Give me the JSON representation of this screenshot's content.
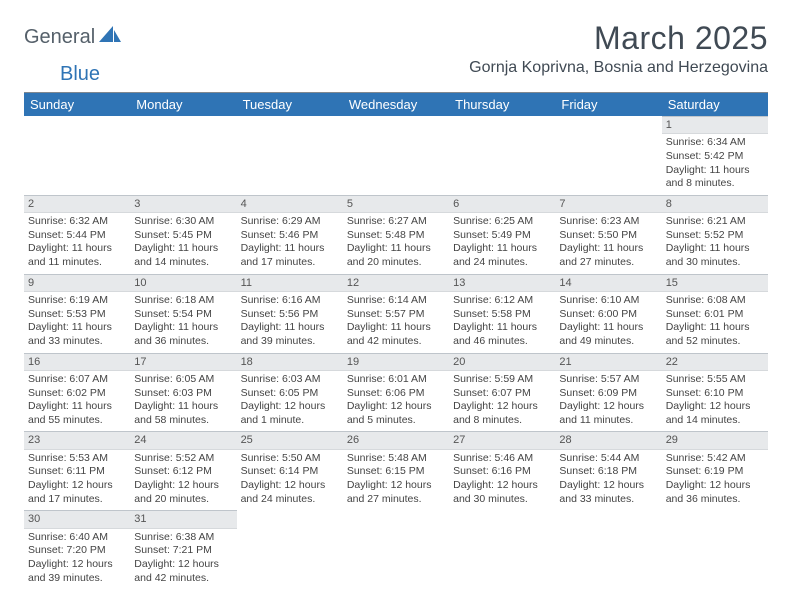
{
  "logo": {
    "general": "General",
    "blue": "Blue"
  },
  "title": "March 2025",
  "location": "Gornja Koprivna, Bosnia and Herzegovina",
  "colors": {
    "header_bg": "#2f74b5",
    "header_text": "#ffffff",
    "daynum_bg": "#e7e9eb",
    "grid_border": "#bfc5cb",
    "text": "#444444",
    "title_text": "#404a54",
    "logo_gray": "#55606a",
    "logo_blue": "#2f74b5"
  },
  "weekdays": [
    "Sunday",
    "Monday",
    "Tuesday",
    "Wednesday",
    "Thursday",
    "Friday",
    "Saturday"
  ],
  "weeks": [
    [
      null,
      null,
      null,
      null,
      null,
      null,
      {
        "n": "1",
        "sunrise": "Sunrise: 6:34 AM",
        "sunset": "Sunset: 5:42 PM",
        "daylight": "Daylight: 11 hours and 8 minutes."
      }
    ],
    [
      {
        "n": "2",
        "sunrise": "Sunrise: 6:32 AM",
        "sunset": "Sunset: 5:44 PM",
        "daylight": "Daylight: 11 hours and 11 minutes."
      },
      {
        "n": "3",
        "sunrise": "Sunrise: 6:30 AM",
        "sunset": "Sunset: 5:45 PM",
        "daylight": "Daylight: 11 hours and 14 minutes."
      },
      {
        "n": "4",
        "sunrise": "Sunrise: 6:29 AM",
        "sunset": "Sunset: 5:46 PM",
        "daylight": "Daylight: 11 hours and 17 minutes."
      },
      {
        "n": "5",
        "sunrise": "Sunrise: 6:27 AM",
        "sunset": "Sunset: 5:48 PM",
        "daylight": "Daylight: 11 hours and 20 minutes."
      },
      {
        "n": "6",
        "sunrise": "Sunrise: 6:25 AM",
        "sunset": "Sunset: 5:49 PM",
        "daylight": "Daylight: 11 hours and 24 minutes."
      },
      {
        "n": "7",
        "sunrise": "Sunrise: 6:23 AM",
        "sunset": "Sunset: 5:50 PM",
        "daylight": "Daylight: 11 hours and 27 minutes."
      },
      {
        "n": "8",
        "sunrise": "Sunrise: 6:21 AM",
        "sunset": "Sunset: 5:52 PM",
        "daylight": "Daylight: 11 hours and 30 minutes."
      }
    ],
    [
      {
        "n": "9",
        "sunrise": "Sunrise: 6:19 AM",
        "sunset": "Sunset: 5:53 PM",
        "daylight": "Daylight: 11 hours and 33 minutes."
      },
      {
        "n": "10",
        "sunrise": "Sunrise: 6:18 AM",
        "sunset": "Sunset: 5:54 PM",
        "daylight": "Daylight: 11 hours and 36 minutes."
      },
      {
        "n": "11",
        "sunrise": "Sunrise: 6:16 AM",
        "sunset": "Sunset: 5:56 PM",
        "daylight": "Daylight: 11 hours and 39 minutes."
      },
      {
        "n": "12",
        "sunrise": "Sunrise: 6:14 AM",
        "sunset": "Sunset: 5:57 PM",
        "daylight": "Daylight: 11 hours and 42 minutes."
      },
      {
        "n": "13",
        "sunrise": "Sunrise: 6:12 AM",
        "sunset": "Sunset: 5:58 PM",
        "daylight": "Daylight: 11 hours and 46 minutes."
      },
      {
        "n": "14",
        "sunrise": "Sunrise: 6:10 AM",
        "sunset": "Sunset: 6:00 PM",
        "daylight": "Daylight: 11 hours and 49 minutes."
      },
      {
        "n": "15",
        "sunrise": "Sunrise: 6:08 AM",
        "sunset": "Sunset: 6:01 PM",
        "daylight": "Daylight: 11 hours and 52 minutes."
      }
    ],
    [
      {
        "n": "16",
        "sunrise": "Sunrise: 6:07 AM",
        "sunset": "Sunset: 6:02 PM",
        "daylight": "Daylight: 11 hours and 55 minutes."
      },
      {
        "n": "17",
        "sunrise": "Sunrise: 6:05 AM",
        "sunset": "Sunset: 6:03 PM",
        "daylight": "Daylight: 11 hours and 58 minutes."
      },
      {
        "n": "18",
        "sunrise": "Sunrise: 6:03 AM",
        "sunset": "Sunset: 6:05 PM",
        "daylight": "Daylight: 12 hours and 1 minute."
      },
      {
        "n": "19",
        "sunrise": "Sunrise: 6:01 AM",
        "sunset": "Sunset: 6:06 PM",
        "daylight": "Daylight: 12 hours and 5 minutes."
      },
      {
        "n": "20",
        "sunrise": "Sunrise: 5:59 AM",
        "sunset": "Sunset: 6:07 PM",
        "daylight": "Daylight: 12 hours and 8 minutes."
      },
      {
        "n": "21",
        "sunrise": "Sunrise: 5:57 AM",
        "sunset": "Sunset: 6:09 PM",
        "daylight": "Daylight: 12 hours and 11 minutes."
      },
      {
        "n": "22",
        "sunrise": "Sunrise: 5:55 AM",
        "sunset": "Sunset: 6:10 PM",
        "daylight": "Daylight: 12 hours and 14 minutes."
      }
    ],
    [
      {
        "n": "23",
        "sunrise": "Sunrise: 5:53 AM",
        "sunset": "Sunset: 6:11 PM",
        "daylight": "Daylight: 12 hours and 17 minutes."
      },
      {
        "n": "24",
        "sunrise": "Sunrise: 5:52 AM",
        "sunset": "Sunset: 6:12 PM",
        "daylight": "Daylight: 12 hours and 20 minutes."
      },
      {
        "n": "25",
        "sunrise": "Sunrise: 5:50 AM",
        "sunset": "Sunset: 6:14 PM",
        "daylight": "Daylight: 12 hours and 24 minutes."
      },
      {
        "n": "26",
        "sunrise": "Sunrise: 5:48 AM",
        "sunset": "Sunset: 6:15 PM",
        "daylight": "Daylight: 12 hours and 27 minutes."
      },
      {
        "n": "27",
        "sunrise": "Sunrise: 5:46 AM",
        "sunset": "Sunset: 6:16 PM",
        "daylight": "Daylight: 12 hours and 30 minutes."
      },
      {
        "n": "28",
        "sunrise": "Sunrise: 5:44 AM",
        "sunset": "Sunset: 6:18 PM",
        "daylight": "Daylight: 12 hours and 33 minutes."
      },
      {
        "n": "29",
        "sunrise": "Sunrise: 5:42 AM",
        "sunset": "Sunset: 6:19 PM",
        "daylight": "Daylight: 12 hours and 36 minutes."
      }
    ],
    [
      {
        "n": "30",
        "sunrise": "Sunrise: 6:40 AM",
        "sunset": "Sunset: 7:20 PM",
        "daylight": "Daylight: 12 hours and 39 minutes."
      },
      {
        "n": "31",
        "sunrise": "Sunrise: 6:38 AM",
        "sunset": "Sunset: 7:21 PM",
        "daylight": "Daylight: 12 hours and 42 minutes."
      },
      null,
      null,
      null,
      null,
      null
    ]
  ]
}
